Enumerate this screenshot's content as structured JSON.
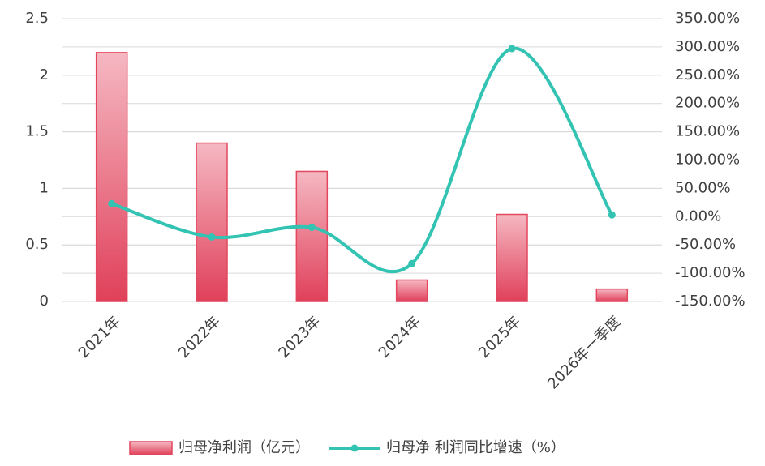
{
  "chart_data": {
    "type": "bar",
    "categories": [
      "2021年",
      "2022年",
      "2023年",
      "2024年",
      "2025年",
      "2026年一季度"
    ],
    "series": [
      {
        "name": "归母净利润（亿元）",
        "type": "bar",
        "color": "#e4465e",
        "values": [
          2.2,
          1.4,
          1.15,
          0.19,
          0.77,
          0.11
        ]
      },
      {
        "name": "归母净 利润同比增速（%）",
        "type": "line",
        "axis": "y2",
        "color": "#33c3b3",
        "values": [
          23,
          -36,
          -19,
          -83,
          297,
          3
        ]
      }
    ],
    "ylim": [
      0,
      2.5
    ],
    "yticks": [
      0,
      0.5,
      1,
      1.5,
      2,
      2.5
    ],
    "y2lim": [
      -150,
      350
    ],
    "y2ticks": [
      {
        "value": -150,
        "label": "-150.00%"
      },
      {
        "value": -100,
        "label": "-100.00%"
      },
      {
        "value": -50,
        "label": "-50.00%"
      },
      {
        "value": 0,
        "label": "0.00%"
      },
      {
        "value": 50,
        "label": "50.00%"
      },
      {
        "value": 100,
        "label": "100.00%"
      },
      {
        "value": 150,
        "label": "150.00%"
      },
      {
        "value": 200,
        "label": "200.00%"
      },
      {
        "value": 250,
        "label": "250.00%"
      },
      {
        "value": 300,
        "label": "300.00%"
      },
      {
        "value": 350,
        "label": "350.00%"
      }
    ],
    "grid": true,
    "legend": "bottom"
  }
}
